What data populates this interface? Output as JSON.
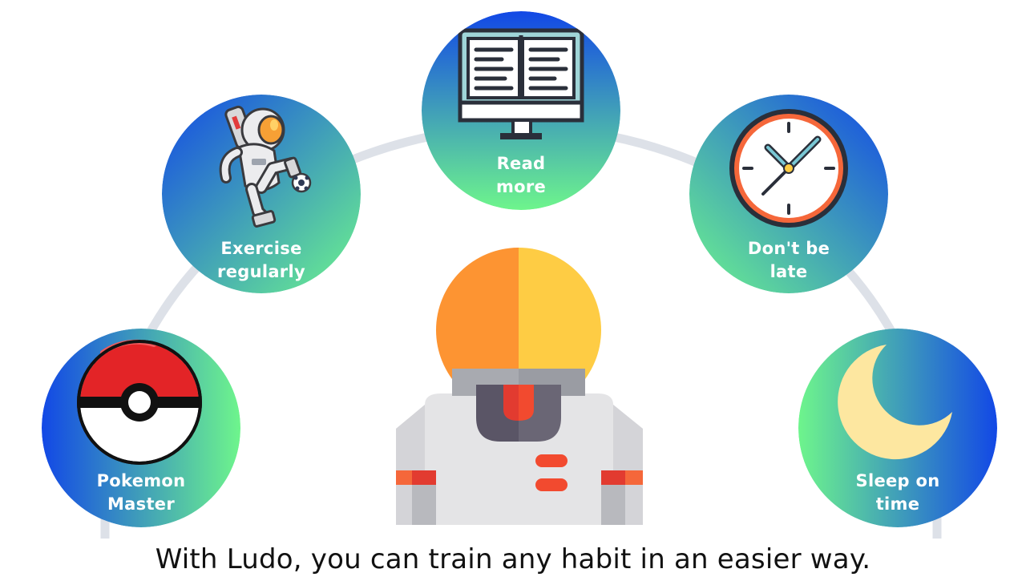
{
  "colors": {
    "gradient_blue": "#1248e6",
    "gradient_green": "#6ef58c",
    "arc_gray": "#dde1e8",
    "label_white": "#ffffff",
    "text_dark": "#111111",
    "helmet_orange": "#fd9432",
    "helmet_yellow": "#fecc44",
    "suit_gray": "#e4e4e6",
    "accent_red": "#f24a2f"
  },
  "habits": [
    {
      "id": "pokemon",
      "icon": "pokeball-icon",
      "line1": "Pokemon",
      "line2": "Master"
    },
    {
      "id": "exercise",
      "icon": "astronaut-soccer-icon",
      "line1": "Exercise",
      "line2": "regularly"
    },
    {
      "id": "read",
      "icon": "book-monitor-icon",
      "line1": "Read",
      "line2": "more"
    },
    {
      "id": "punctual",
      "icon": "clock-icon",
      "line1": "Don't be",
      "line2": "late"
    },
    {
      "id": "sleep",
      "icon": "moon-icon",
      "line1": "Sleep on",
      "line2": "time"
    }
  ],
  "mascot": {
    "icon": "astronaut-mascot-icon"
  },
  "tagline": "With Ludo, you can train any habit in an easier way."
}
